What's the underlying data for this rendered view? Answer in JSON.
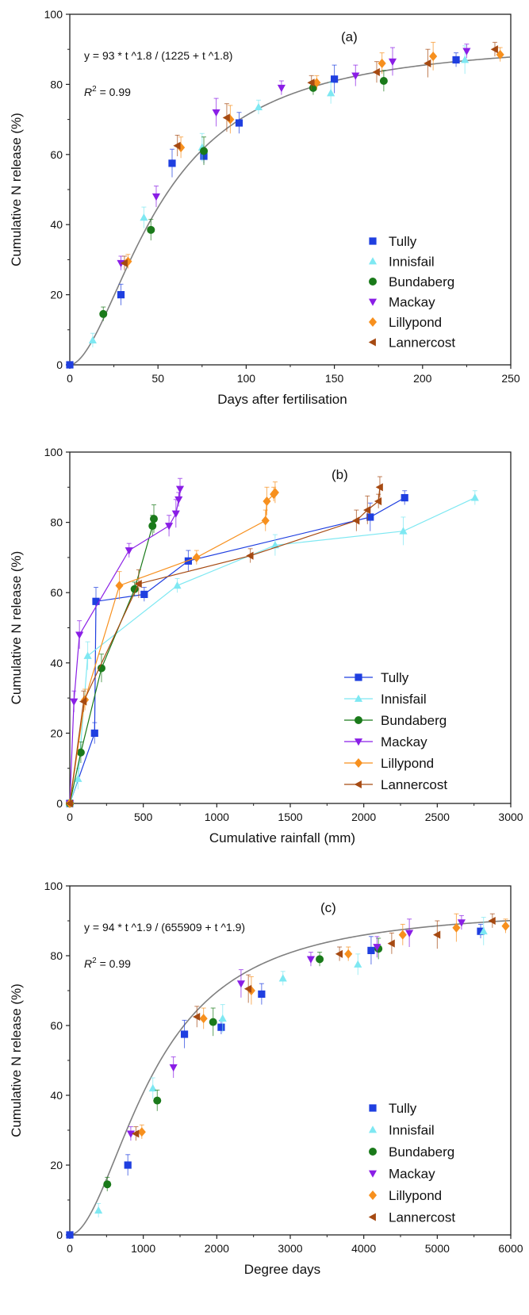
{
  "colors": {
    "Tully": "#1f3fe0",
    "Innisfail": "#7ee8f2",
    "Bundaberg": "#1a7a1a",
    "Mackay": "#8a1ee6",
    "Lillypond": "#f7901e",
    "Lannercost": "#a64a12",
    "fit_line": "#7f7f7f",
    "error_bar": "#999999"
  },
  "markers": {
    "Tully": "square",
    "Innisfail": "triangle-up",
    "Bundaberg": "circle",
    "Mackay": "triangle-down",
    "Lillypond": "diamond",
    "Lannercost": "triangle-left"
  },
  "chart_data": [
    {
      "type": "scatter",
      "panel_label": "(a)",
      "xlabel": "Days after fertilisation",
      "ylabel": "Cumulative N release (%)",
      "xlim": [
        0,
        250
      ],
      "ylim": [
        0,
        100
      ],
      "xticks": [
        "0",
        "50",
        "100",
        "150",
        "200",
        "250"
      ],
      "yticks": [
        "0",
        "20",
        "40",
        "60",
        "80",
        "100"
      ],
      "legend": "bottom-right",
      "lines_connect_points": false,
      "fit": {
        "equation_label": "y = 93 * t ^1.8 / (1225 + t ^1.8)",
        "r2_label": "= 0.99",
        "a": 93,
        "b": 1.8,
        "c": 1225
      },
      "series": [
        {
          "name": "Tully",
          "points": [
            [
              0,
              0
            ],
            [
              29,
              20
            ],
            [
              58,
              57.5
            ],
            [
              76,
              59.5
            ],
            [
              96,
              69
            ],
            [
              150,
              81.5
            ],
            [
              219,
              87
            ]
          ]
        },
        {
          "name": "Innisfail",
          "points": [
            [
              13,
              7
            ],
            [
              42,
              42
            ],
            [
              75,
              62
            ],
            [
              107,
              73.5
            ],
            [
              148,
              77.5
            ],
            [
              224,
              87
            ]
          ]
        },
        {
          "name": "Bundaberg",
          "points": [
            [
              19,
              14.5
            ],
            [
              46,
              38.5
            ],
            [
              76,
              61
            ],
            [
              138,
              79
            ],
            [
              178,
              81
            ]
          ]
        },
        {
          "name": "Mackay",
          "points": [
            [
              29,
              29
            ],
            [
              49,
              48
            ],
            [
              83,
              72
            ],
            [
              120,
              79
            ],
            [
              162,
              82.5
            ],
            [
              183,
              86.5
            ],
            [
              225,
              89.5
            ]
          ]
        },
        {
          "name": "Lillypond",
          "points": [
            [
              33,
              29.5
            ],
            [
              63,
              62
            ],
            [
              91,
              70
            ],
            [
              140,
              80.5
            ],
            [
              177,
              86
            ],
            [
              206,
              88
            ],
            [
              244,
              88.5
            ]
          ]
        },
        {
          "name": "Lannercost",
          "points": [
            [
              31,
              29
            ],
            [
              61,
              62.5
            ],
            [
              89,
              70.5
            ],
            [
              137,
              80.5
            ],
            [
              174,
              83.5
            ],
            [
              203,
              86
            ],
            [
              241,
              90
            ]
          ]
        }
      ]
    },
    {
      "type": "line",
      "panel_label": "(b)",
      "xlabel": "Cumulative rainfall (mm)",
      "ylabel": "Cumulative N release (%)",
      "xlim": [
        0,
        3200
      ],
      "ylim": [
        0,
        100
      ],
      "xticks": [
        "0",
        "500",
        "1000",
        "1500",
        "2000",
        "2500",
        "3000"
      ],
      "yticks": [
        "0",
        "20",
        "40",
        "60",
        "80",
        "100"
      ],
      "legend": "bottom-right",
      "lines_connect_points": true,
      "series": [
        {
          "name": "Tully",
          "points": [
            [
              0,
              0
            ],
            [
              180,
              20
            ],
            [
              190,
              57.5
            ],
            [
              540,
              59.5
            ],
            [
              860,
              69
            ],
            [
              2180,
              81.5
            ],
            [
              2430,
              87
            ]
          ]
        },
        {
          "name": "Innisfail",
          "points": [
            [
              0,
              0
            ],
            [
              60,
              7
            ],
            [
              130,
              42
            ],
            [
              780,
              62
            ],
            [
              1490,
              73.5
            ],
            [
              2420,
              77.5
            ],
            [
              2940,
              87
            ]
          ]
        },
        {
          "name": "Bundaberg",
          "points": [
            [
              0,
              0
            ],
            [
              80,
              14.5
            ],
            [
              230,
              38.5
            ],
            [
              470,
              61
            ],
            [
              600,
              79
            ],
            [
              610,
              81
            ]
          ]
        },
        {
          "name": "Mackay",
          "points": [
            [
              0,
              0
            ],
            [
              30,
              29
            ],
            [
              70,
              48
            ],
            [
              430,
              72
            ],
            [
              720,
              79
            ],
            [
              770,
              82.5
            ],
            [
              790,
              86.5
            ],
            [
              800,
              89.5
            ]
          ]
        },
        {
          "name": "Lillypond",
          "points": [
            [
              0,
              0
            ],
            [
              110,
              29.5
            ],
            [
              360,
              62
            ],
            [
              920,
              70
            ],
            [
              1420,
              80.5
            ],
            [
              1430,
              86
            ],
            [
              1480,
              88
            ],
            [
              1490,
              88.5
            ]
          ]
        },
        {
          "name": "Lannercost",
          "points": [
            [
              0,
              0
            ],
            [
              100,
              29
            ],
            [
              500,
              62.5
            ],
            [
              1310,
              70.5
            ],
            [
              2080,
              80.5
            ],
            [
              2160,
              83.5
            ],
            [
              2240,
              86
            ],
            [
              2250,
              90
            ]
          ]
        }
      ]
    },
    {
      "type": "scatter",
      "panel_label": "(c)",
      "xlabel": "Degree days",
      "ylabel": "Cumulative N release (%)",
      "xlim": [
        0,
        6000
      ],
      "ylim": [
        0,
        100
      ],
      "xticks": [
        "0",
        "1000",
        "2000",
        "3000",
        "4000",
        "5000",
        "6000"
      ],
      "yticks": [
        "0",
        "20",
        "40",
        "60",
        "80",
        "100"
      ],
      "legend": "bottom-right",
      "lines_connect_points": false,
      "fit": {
        "equation_label": "y = 94 * t ^1.9 / (655909 + t ^1.9)",
        "r2_label": "= 0.99",
        "a": 94,
        "b": 1.9,
        "c": 655909
      },
      "series": [
        {
          "name": "Tully",
          "points": [
            [
              0,
              0
            ],
            [
              790,
              20
            ],
            [
              1560,
              57.5
            ],
            [
              2060,
              59.5
            ],
            [
              2610,
              69
            ],
            [
              4100,
              81.5
            ],
            [
              5590,
              87
            ]
          ]
        },
        {
          "name": "Innisfail",
          "points": [
            [
              390,
              7
            ],
            [
              1130,
              42
            ],
            [
              2080,
              62
            ],
            [
              2900,
              73.5
            ],
            [
              3920,
              77.5
            ],
            [
              5630,
              87
            ]
          ]
        },
        {
          "name": "Bundaberg",
          "points": [
            [
              510,
              14.5
            ],
            [
              1190,
              38.5
            ],
            [
              1950,
              61
            ],
            [
              3400,
              79
            ],
            [
              4200,
              82
            ]
          ]
        },
        {
          "name": "Mackay",
          "points": [
            [
              830,
              29
            ],
            [
              1410,
              48
            ],
            [
              2330,
              72
            ],
            [
              3280,
              79
            ],
            [
              4180,
              82.5
            ],
            [
              4620,
              86.5
            ],
            [
              5330,
              89.5
            ]
          ]
        },
        {
          "name": "Lillypond",
          "points": [
            [
              980,
              29.5
            ],
            [
              1820,
              62
            ],
            [
              2470,
              70
            ],
            [
              3790,
              80.5
            ],
            [
              4530,
              86
            ],
            [
              5260,
              88
            ],
            [
              5930,
              88.5
            ]
          ]
        },
        {
          "name": "Lannercost",
          "points": [
            [
              900,
              29
            ],
            [
              1730,
              62.5
            ],
            [
              2430,
              70.5
            ],
            [
              3670,
              80.5
            ],
            [
              4380,
              83.5
            ],
            [
              5000,
              86
            ],
            [
              5750,
              90
            ]
          ]
        }
      ]
    }
  ]
}
